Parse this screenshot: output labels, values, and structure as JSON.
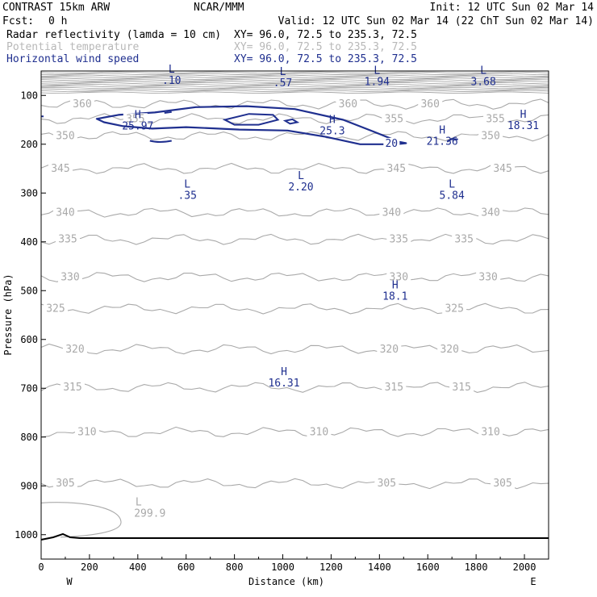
{
  "header": {
    "model": "CONTRAST 15km ARW",
    "org": "NCAR/MMM",
    "init": "Init: 12 UTC Sun 02 Mar 14",
    "fcst_label": "Fcst:",
    "fcst_value": "0 h",
    "valid": "Valid: 12 UTC Sun 02 Mar 14 (22 ChT Sun 02 Mar 14)",
    "fields": [
      {
        "name": "Radar reflectivity (lamda = 10 cm)",
        "xy": "XY=  96.0, 72.5 to 235.3, 72.5",
        "color": "#000000"
      },
      {
        "name": "Potential temperature",
        "xy": "XY=  96.0, 72.5 to 235.3, 72.5",
        "color": "#b8b8b8"
      },
      {
        "name": "Horizontal wind speed",
        "xy": "XY=  96.0, 72.5 to 235.3, 72.5",
        "color": "#1f2f8f"
      }
    ]
  },
  "chart_data": {
    "type": "contour cross-section",
    "xlabel": "Distance (km)",
    "ylabel": "Pressure (hPa)",
    "xlim": [
      0,
      2100
    ],
    "ylim": [
      1050,
      50
    ],
    "x_ticks": [
      0,
      200,
      400,
      600,
      800,
      1000,
      1200,
      1400,
      1600,
      1800,
      2000
    ],
    "y_ticks": [
      100,
      200,
      300,
      400,
      500,
      600,
      700,
      800,
      900,
      1000
    ],
    "x_tick_labels": [
      "0",
      "200",
      "400",
      "600",
      "800",
      "1000",
      "1200",
      "1400",
      "1600",
      "1800",
      "2000"
    ],
    "y_tick_labels": [
      "100",
      "200",
      "300",
      "400",
      "500",
      "600",
      "700",
      "800",
      "900",
      "1000"
    ],
    "endpoint_labels": {
      "left": "W",
      "right": "E"
    },
    "potential_temperature": {
      "color": "#a9a9a9",
      "levels": [
        {
          "theta": 305,
          "p": 895,
          "label_x": [
            100,
            1430,
            1910
          ]
        },
        {
          "theta": 310,
          "p": 790,
          "label_x": [
            190,
            1150,
            1860
          ]
        },
        {
          "theta": 315,
          "p": 698,
          "label_x": [
            130,
            1460,
            1740
          ]
        },
        {
          "theta": 320,
          "p": 620,
          "label_x": [
            140,
            1440,
            1690
          ]
        },
        {
          "theta": 325,
          "p": 537,
          "label_x": [
            60,
            1710
          ]
        },
        {
          "theta": 330,
          "p": 472,
          "label_x": [
            120,
            1480,
            1850
          ]
        },
        {
          "theta": 335,
          "p": 395,
          "label_x": [
            110,
            1480,
            1750
          ]
        },
        {
          "theta": 340,
          "p": 340,
          "label_x": [
            100,
            1450,
            1860
          ]
        },
        {
          "theta": 345,
          "p": 250,
          "label_x": [
            80,
            1470,
            1910
          ]
        },
        {
          "theta": 350,
          "p": 183,
          "label_x": [
            100,
            1860
          ]
        },
        {
          "theta": 355,
          "p": 148,
          "label_x": [
            390,
            1460,
            1880
          ]
        },
        {
          "theta": 360,
          "p": 118,
          "label_x": [
            170,
            1270,
            1610
          ]
        }
      ],
      "extremes": [
        {
          "type": "L",
          "value": "299.9",
          "x": 450,
          "p": 960
        }
      ]
    },
    "wind_speed": {
      "color": "#1f2f8f",
      "contour_level": "20",
      "extremes": [
        {
          "type": "L",
          "value": ".10",
          "x": 540,
          "p": 70
        },
        {
          "type": "L",
          "value": ".57",
          "x": 1000,
          "p": 75
        },
        {
          "type": "L",
          "value": "1.94",
          "x": 1390,
          "p": 72
        },
        {
          "type": "L",
          "value": "3.68",
          "x": 1830,
          "p": 72
        },
        {
          "type": "H",
          "value": "25.97",
          "x": 400,
          "p": 163
        },
        {
          "type": "H",
          "value": "25.3",
          "x": 1205,
          "p": 173
        },
        {
          "type": "H",
          "value": "21.36",
          "x": 1660,
          "p": 195
        },
        {
          "type": "H",
          "value": "18.31",
          "x": 1995,
          "p": 162
        },
        {
          "type": "L",
          "value": ".35",
          "x": 605,
          "p": 305
        },
        {
          "type": "L",
          "value": "2.20",
          "x": 1075,
          "p": 288
        },
        {
          "type": "L",
          "value": "5.84",
          "x": 1700,
          "p": 305
        },
        {
          "type": "H",
          "value": "18.1",
          "x": 1465,
          "p": 512
        },
        {
          "type": "H",
          "value": "16.31",
          "x": 1005,
          "p": 690
        }
      ]
    },
    "surface_pressure_hpa": 1007
  }
}
